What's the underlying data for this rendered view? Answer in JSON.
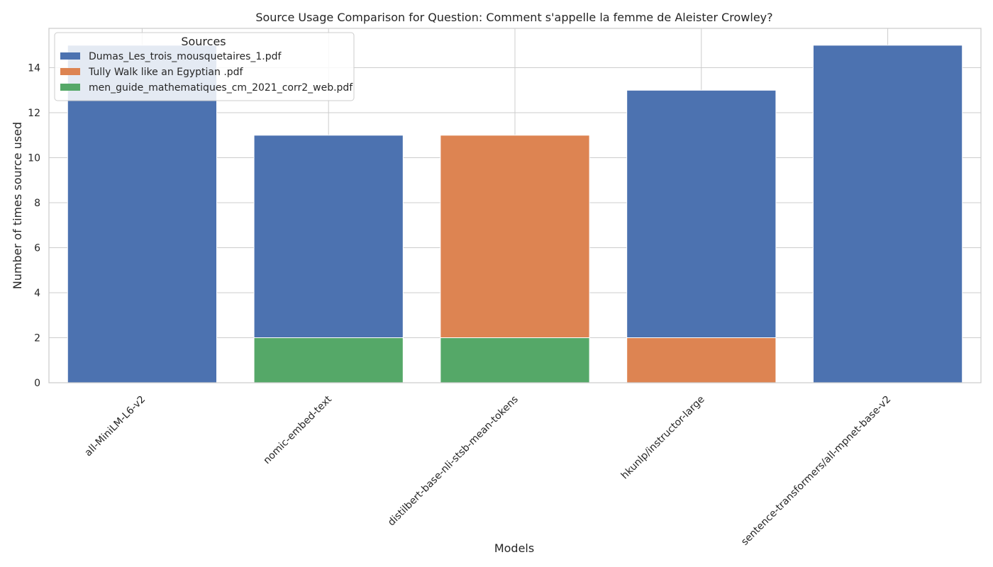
{
  "chart_data": {
    "type": "bar",
    "stacked": true,
    "title": "Source Usage Comparison for Question: Comment s'appelle la femme de Aleister Crowley?",
    "xlabel": "Models",
    "ylabel": "Number of times source used",
    "categories": [
      "all-MiniLM-L6-v2",
      "nomic-embed-text",
      "distilbert-base-nli-stsb-mean-tokens",
      "hkunlp/instructor-large",
      "sentence-transformers/all-mpnet-base-v2"
    ],
    "series": [
      {
        "name": "men_guide_mathematiques_cm_2021_corr2_web.pdf",
        "color": "#55a868",
        "values": [
          0,
          2,
          2,
          0,
          0
        ]
      },
      {
        "name": "Tully Walk like an Egyptian .pdf",
        "color": "#dd8452",
        "values": [
          0,
          0,
          9,
          2,
          0
        ]
      },
      {
        "name": "Dumas_Les_trois_mousquetaires_1.pdf",
        "color": "#4c72b0",
        "values": [
          15,
          9,
          0,
          11,
          15
        ]
      }
    ],
    "legend": {
      "title": "Sources",
      "position": "top-left",
      "entries": [
        {
          "name": "Dumas_Les_trois_mousquetaires_1.pdf",
          "color": "#4c72b0"
        },
        {
          "name": "Tully Walk like an Egyptian .pdf",
          "color": "#dd8452"
        },
        {
          "name": "men_guide_mathematiques_cm_2021_corr2_web.pdf",
          "color": "#55a868"
        }
      ]
    },
    "ylim": [
      0,
      15.75
    ],
    "yticks": [
      0,
      2,
      4,
      6,
      8,
      10,
      12,
      14
    ],
    "grid": true
  }
}
